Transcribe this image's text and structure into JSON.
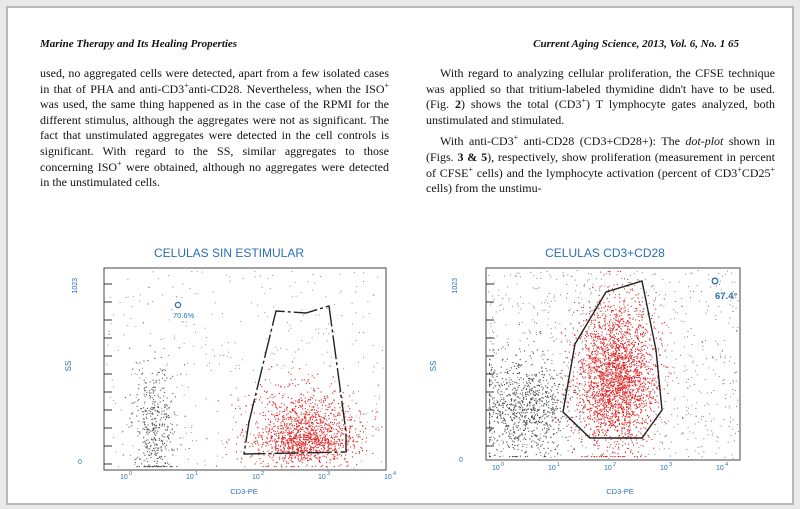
{
  "header": {
    "left": "Marine Therapy and Its Healing Properties",
    "right": "Current Aging Science, 2013, Vol. 6, No. 1    65"
  },
  "left_column": {
    "p1_a": "used, no aggregated cells were detected, apart from a few isolated cases in that of PHA and anti-CD3",
    "p1_sup1": "+",
    "p1_b": "anti-CD28. Nevertheless, when the ISO",
    "p1_sup2": "+",
    "p1_c": " was used, the same thing happened as in the case of the RPMI for the different stimulus, although the aggregates were not as significant. The fact that unstimulated aggregates were detected in the cell controls is significant. With regard to the SS, similar aggregates to those concerning ISO",
    "p1_sup3": "+",
    "p1_d": " were obtained, although no aggregates were detected in the unstimulated cells."
  },
  "right_column": {
    "p1_a": "With regard to analyzing cellular proliferation, the CFSE technique was applied so that tritium-labeled thymidine didn't have to be used. (Fig. ",
    "p1_fig": "2",
    "p1_b": ") shows the total (CD3",
    "p1_sup": "+",
    "p1_c": ") T lymphocyte gates analyzed, both unstimulated and stimulated.",
    "p2_a": "With anti-CD3",
    "p2_sup1": "+",
    "p2_b": " anti-CD28 (CD3+CD28+): The ",
    "p2_it": "dot-plot",
    "p2_c": " shown in (Figs. ",
    "p2_figs": "3 & 5",
    "p2_d": "), respectively, show proliferation (measurement in percent of CFSE",
    "p2_sup2": "+",
    "p2_e": " cells) and the lymphocyte activation (percent of CD3",
    "p2_sup3": "+",
    "p2_f": "CD25",
    "p2_sup4": "+",
    "p2_g": " cells) from the unstimu-"
  },
  "figures": {
    "left": {
      "title": "CELULAS SIN ESTIMULAR",
      "percent": "70.6%",
      "y_label": "SS",
      "y_top": "1023",
      "y_bottom": "0",
      "x_label": "CD3-PE",
      "x_ticks": [
        "10",
        "1",
        "2",
        "3",
        "4"
      ]
    },
    "right": {
      "title": "CELULAS CD3+CD28",
      "percent": "67.4°",
      "y_label": "SS",
      "y_top": "1023",
      "y_bottom": "0",
      "x_label": "CD3-PE",
      "x_ticks": [
        "10",
        "1",
        "2",
        "3",
        "4"
      ]
    }
  },
  "colors": {
    "label_blue": "#2a6fb5",
    "gate_red": "#e02020",
    "dot_gray": "#555555"
  }
}
